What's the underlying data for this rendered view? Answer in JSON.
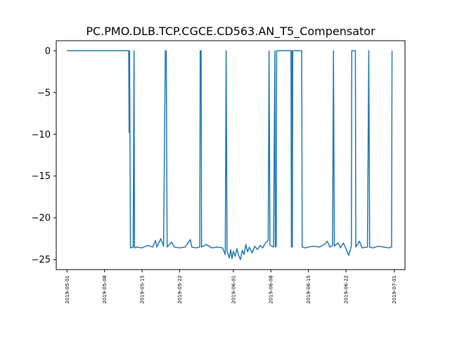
{
  "chart_data": {
    "type": "line",
    "title": "PC.PMO.DLB.TCP.CGCE.CD563.AN_T5_Compensator",
    "xlabel": "",
    "ylabel": "",
    "x_range": [
      "2019-04-29",
      "2019-07-03"
    ],
    "ylim": [
      -26.2,
      1.2
    ],
    "grid": false,
    "legend": "none",
    "color": "#1f77b4",
    "x_ticks": [
      "2019-05-01",
      "2019-05-08",
      "2019-05-15",
      "2019-05-22",
      "2019-06-01",
      "2019-06-08",
      "2019-06-15",
      "2019-06-22",
      "2019-07-01"
    ],
    "y_ticks": [
      0,
      -5,
      -10,
      -15,
      -20,
      -25
    ],
    "y_tick_labels": [
      "0",
      "−5",
      "−10",
      "−15",
      "−20",
      "−25"
    ],
    "series": [
      {
        "name": "",
        "points": [
          [
            "2019-05-01 00:00",
            0
          ],
          [
            "2019-05-12 12:00",
            0
          ],
          [
            "2019-05-12 14:00",
            -9.8
          ],
          [
            "2019-05-12 16:00",
            0
          ],
          [
            "2019-05-12 20:00",
            -23.6
          ],
          [
            "2019-05-13 08:00",
            -23.5
          ],
          [
            "2019-05-13 12:00",
            0
          ],
          [
            "2019-05-13 14:00",
            -23.6
          ],
          [
            "2019-05-14 00:00",
            -23.5
          ],
          [
            "2019-05-15 00:00",
            -23.6
          ],
          [
            "2019-05-16 00:00",
            -23.3
          ],
          [
            "2019-05-17 00:00",
            -23.5
          ],
          [
            "2019-05-17 12:00",
            -22.7
          ],
          [
            "2019-05-17 18:00",
            -23.5
          ],
          [
            "2019-05-18 12:00",
            -22.5
          ],
          [
            "2019-05-19 00:00",
            -23.4
          ],
          [
            "2019-05-19 08:00",
            0
          ],
          [
            "2019-05-19 12:00",
            0
          ],
          [
            "2019-05-19 16:00",
            -23.5
          ],
          [
            "2019-05-20 12:00",
            -22.9
          ],
          [
            "2019-05-21 00:00",
            -23.5
          ],
          [
            "2019-05-22 00:00",
            -23.6
          ],
          [
            "2019-05-23 00:00",
            -23.5
          ],
          [
            "2019-05-24 00:00",
            -22.6
          ],
          [
            "2019-05-24 06:00",
            -23.5
          ],
          [
            "2019-05-25 00:00",
            -23.6
          ],
          [
            "2019-05-25 18:00",
            -23.5
          ],
          [
            "2019-05-25 20:00",
            0
          ],
          [
            "2019-05-26 00:00",
            0
          ],
          [
            "2019-05-26 02:00",
            -23.5
          ],
          [
            "2019-05-27 00:00",
            -23.2
          ],
          [
            "2019-05-28 00:00",
            -23.6
          ],
          [
            "2019-05-29 00:00",
            -23.5
          ],
          [
            "2019-05-30 00:00",
            -23.6
          ],
          [
            "2019-05-30 12:00",
            -24.4
          ],
          [
            "2019-05-30 16:00",
            0
          ],
          [
            "2019-05-30 20:00",
            -24.0
          ],
          [
            "2019-05-31 06:00",
            -24.8
          ],
          [
            "2019-05-31 12:00",
            -23.8
          ],
          [
            "2019-05-31 18:00",
            -24.9
          ],
          [
            "2019-06-01 00:00",
            -24.0
          ],
          [
            "2019-06-01 08:00",
            -24.6
          ],
          [
            "2019-06-01 16:00",
            -23.7
          ],
          [
            "2019-06-02 00:00",
            -24.5
          ],
          [
            "2019-06-02 08:00",
            -25.0
          ],
          [
            "2019-06-02 16:00",
            -23.9
          ],
          [
            "2019-06-03 00:00",
            -24.4
          ],
          [
            "2019-06-03 08:00",
            -23.2
          ],
          [
            "2019-06-03 16:00",
            -24.1
          ],
          [
            "2019-06-04 00:00",
            -23.5
          ],
          [
            "2019-06-04 12:00",
            -24.2
          ],
          [
            "2019-06-05 00:00",
            -23.4
          ],
          [
            "2019-06-05 12:00",
            -23.8
          ],
          [
            "2019-06-06 00:00",
            -23.3
          ],
          [
            "2019-06-06 12:00",
            -23.6
          ],
          [
            "2019-06-07 00:00",
            -23.0
          ],
          [
            "2019-06-07 12:00",
            -22.7
          ],
          [
            "2019-06-07 16:00",
            0
          ],
          [
            "2019-06-07 20:00",
            -23.3
          ],
          [
            "2019-06-08 12:00",
            -23.5
          ],
          [
            "2019-06-08 18:00",
            0
          ],
          [
            "2019-06-08 20:00",
            -23.5
          ],
          [
            "2019-06-09 00:00",
            -23.4
          ],
          [
            "2019-06-09 02:00",
            0
          ],
          [
            "2019-06-11 18:00",
            0
          ],
          [
            "2019-06-11 20:00",
            -23.5
          ],
          [
            "2019-06-11 22:00",
            0
          ],
          [
            "2019-06-12 00:00",
            -23.5
          ],
          [
            "2019-06-12 02:00",
            0
          ],
          [
            "2019-06-13 18:00",
            0
          ],
          [
            "2019-06-13 20:00",
            -23.5
          ],
          [
            "2019-06-14 12:00",
            -23.6
          ],
          [
            "2019-06-15 00:00",
            -23.5
          ],
          [
            "2019-06-16 00:00",
            -23.4
          ],
          [
            "2019-06-17 00:00",
            -23.5
          ],
          [
            "2019-06-18 00:00",
            -23.2
          ],
          [
            "2019-06-18 12:00",
            -22.8
          ],
          [
            "2019-06-19 00:00",
            -23.5
          ],
          [
            "2019-06-19 12:00",
            -23.3
          ],
          [
            "2019-06-19 16:00",
            0
          ],
          [
            "2019-06-19 20:00",
            -23.4
          ],
          [
            "2019-06-20 12:00",
            -23.0
          ],
          [
            "2019-06-21 00:00",
            -23.6
          ],
          [
            "2019-06-21 12:00",
            -23.0
          ],
          [
            "2019-06-22 00:00",
            -23.7
          ],
          [
            "2019-06-22 12:00",
            -24.5
          ],
          [
            "2019-06-23 00:00",
            -23.4
          ],
          [
            "2019-06-23 02:00",
            0
          ],
          [
            "2019-06-23 18:00",
            0
          ],
          [
            "2019-06-23 20:00",
            -23.5
          ],
          [
            "2019-06-24 12:00",
            -22.8
          ],
          [
            "2019-06-25 00:00",
            -23.6
          ],
          [
            "2019-06-26 00:00",
            -23.5
          ],
          [
            "2019-06-26 06:00",
            0
          ],
          [
            "2019-06-26 10:00",
            -23.5
          ],
          [
            "2019-06-27 00:00",
            -23.6
          ],
          [
            "2019-06-28 00:00",
            -23.4
          ],
          [
            "2019-06-29 00:00",
            -23.5
          ],
          [
            "2019-06-30 00:00",
            -23.6
          ],
          [
            "2019-06-30 12:00",
            -23.5
          ],
          [
            "2019-06-30 14:00",
            0
          ]
        ]
      }
    ]
  }
}
